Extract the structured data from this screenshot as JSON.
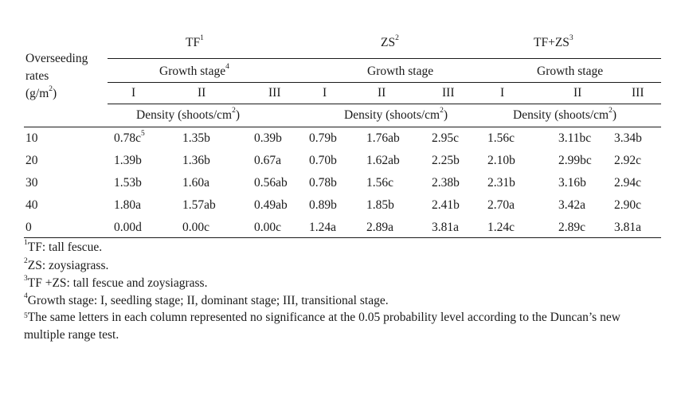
{
  "stub_header": {
    "line1": "Overseeding",
    "line2": "rates",
    "line3_pre": "(g/m",
    "line3_sup": "2",
    "line3_post": ")"
  },
  "groups": [
    {
      "name": "TF",
      "name_sup": "1",
      "stage_label": "Growth stage",
      "stage_sup": "4",
      "density_pre": "Density (shoots/cm",
      "density_sup": "2",
      "density_post": ")"
    },
    {
      "name": "ZS",
      "name_sup": "2",
      "stage_label": "Growth stage",
      "stage_sup": "",
      "density_pre": "Density (shoots/cm",
      "density_sup": "2",
      "density_post": ")"
    },
    {
      "name": "TF+ZS",
      "name_sup": "3",
      "stage_label": "Growth stage",
      "stage_sup": "",
      "density_pre": "Density (shoots/cm",
      "density_sup": "2",
      "density_post": ")"
    }
  ],
  "stages": [
    "I",
    "II",
    "III",
    "I",
    "II",
    "III",
    "I",
    "II",
    "III"
  ],
  "rows": [
    {
      "rate": "10",
      "cells": [
        "0.78c",
        "1.35b",
        "0.39b",
        "0.79b",
        "1.76ab",
        "2.95c",
        "1.56c",
        "3.11bc",
        "3.34b"
      ],
      "first_sup": "5"
    },
    {
      "rate": "20",
      "cells": [
        "1.39b",
        "1.36b",
        "0.67a",
        "0.70b",
        "1.62ab",
        "2.25b",
        "2.10b",
        "2.99bc",
        "2.92c"
      ],
      "first_sup": ""
    },
    {
      "rate": "30",
      "cells": [
        "1.53b",
        "1.60a",
        "0.56ab",
        "0.78b",
        "1.56c",
        "2.38b",
        "2.31b",
        "3.16b",
        "2.94c"
      ],
      "first_sup": ""
    },
    {
      "rate": "40",
      "cells": [
        "1.80a",
        "1.57ab",
        "0.49ab",
        "0.89b",
        "1.85b",
        "2.41b",
        "2.70a",
        "3.42a",
        "2.90c"
      ],
      "first_sup": ""
    },
    {
      "rate": "0",
      "cells": [
        "0.00d",
        "0.00c",
        "0.00c",
        "1.24a",
        "2.89a",
        "3.81a",
        "1.24c",
        "2.89c",
        "3.81a"
      ],
      "first_sup": ""
    }
  ],
  "footnotes": [
    {
      "sup": "1",
      "text": "TF: tall fescue."
    },
    {
      "sup": "2",
      "text": "ZS: zoysiagrass."
    },
    {
      "sup": "3",
      "text": "TF +ZS: tall fescue and zoysiagrass."
    },
    {
      "sup": "4",
      "text": "Growth stage: I, seedling stage; II, dominant stage; III, transitional stage."
    },
    {
      "sup": "5",
      "text": "The same letters in each column represented no significance at the 0.05 probability level according to the Duncan’s new multiple range test."
    }
  ]
}
